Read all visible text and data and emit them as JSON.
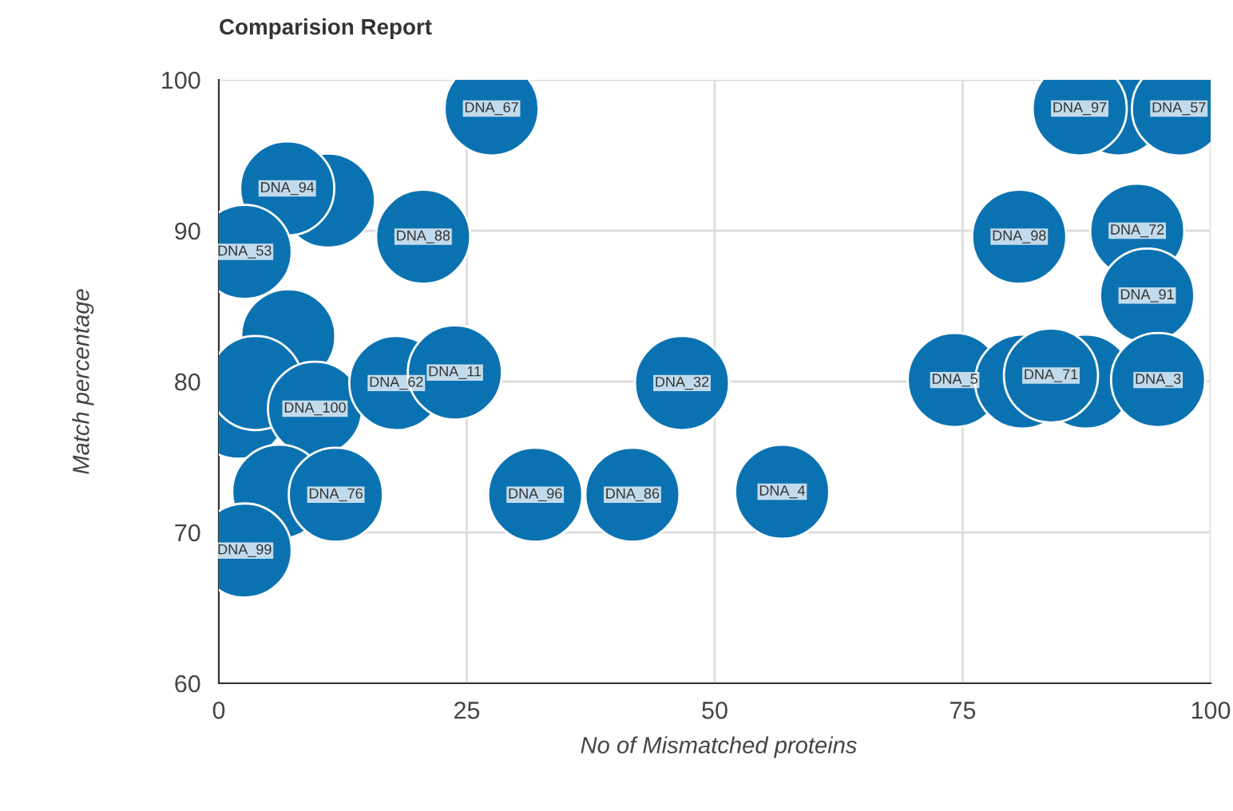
{
  "chart_data": {
    "type": "bubble",
    "title": "Comparision Report",
    "xlabel": "No of Mismatched proteins",
    "ylabel": "Match percentage",
    "x": [
      27.5,
      11,
      6.9,
      2.6,
      20.6,
      7,
      2,
      3.7,
      9.7,
      17.9,
      23.8,
      46.7,
      6.1,
      11.8,
      2.6,
      31.9,
      41.7,
      56.8,
      90.7,
      86.8,
      96.8,
      80.7,
      92.6,
      93.6,
      74.2,
      81,
      87.4,
      83.9,
      94.7
    ],
    "values": [
      98.1,
      92,
      92.8,
      88.6,
      89.6,
      83,
      78,
      79.9,
      78.2,
      79.9,
      80.6,
      79.9,
      72.7,
      72.5,
      68.8,
      72.5,
      72.5,
      72.7,
      98.1,
      98.1,
      98.1,
      89.6,
      90,
      85.7,
      80.1,
      80,
      80,
      80.4,
      80.1
    ],
    "sizes": [
      1,
      1,
      1,
      1,
      1,
      1,
      1,
      1,
      1,
      1,
      1,
      1,
      1,
      1,
      1,
      1,
      1,
      1,
      1,
      1,
      1,
      1,
      1,
      1,
      1,
      1,
      1,
      1,
      1
    ],
    "color": "#0b72b2",
    "xlim": [
      0,
      100
    ],
    "ylim": [
      60,
      100
    ],
    "xticks": [
      0,
      25,
      50,
      75,
      100
    ],
    "yticks": [
      60,
      70,
      80,
      90,
      100
    ],
    "grid": true,
    "annotations": [
      {
        "text": "DNA_67",
        "x": 27.5,
        "y": 98.1
      },
      {
        "text": "DNA_94",
        "x": 6.9,
        "y": 92.8
      },
      {
        "text": "DNA_53",
        "x": 2.6,
        "y": 88.6
      },
      {
        "text": "DNA_88",
        "x": 20.6,
        "y": 89.6
      },
      {
        "text": "DNA_100",
        "x": 9.7,
        "y": 78.2
      },
      {
        "text": "DNA_62",
        "x": 17.9,
        "y": 79.9
      },
      {
        "text": "DNA_11",
        "x": 23.8,
        "y": 80.6
      },
      {
        "text": "DNA_32",
        "x": 46.7,
        "y": 79.9
      },
      {
        "text": "DNA_76",
        "x": 11.8,
        "y": 72.5
      },
      {
        "text": "DNA_99",
        "x": 2.6,
        "y": 68.8
      },
      {
        "text": "DNA_96",
        "x": 31.9,
        "y": 72.5
      },
      {
        "text": "DNA_86",
        "x": 41.7,
        "y": 72.5
      },
      {
        "text": "DNA_4",
        "x": 56.8,
        "y": 72.7
      },
      {
        "text": "DNA_97",
        "x": 86.8,
        "y": 98.1
      },
      {
        "text": "DNA_57",
        "x": 96.8,
        "y": 98.1
      },
      {
        "text": "DNA_98",
        "x": 80.7,
        "y": 89.6
      },
      {
        "text": "DNA_72",
        "x": 92.6,
        "y": 90
      },
      {
        "text": "DNA_91",
        "x": 93.6,
        "y": 85.7
      },
      {
        "text": "DNA_5",
        "x": 74.2,
        "y": 80.1
      },
      {
        "text": "DNA_71",
        "x": 83.9,
        "y": 80.4
      },
      {
        "text": "DNA_3",
        "x": 94.7,
        "y": 80.1
      }
    ]
  }
}
